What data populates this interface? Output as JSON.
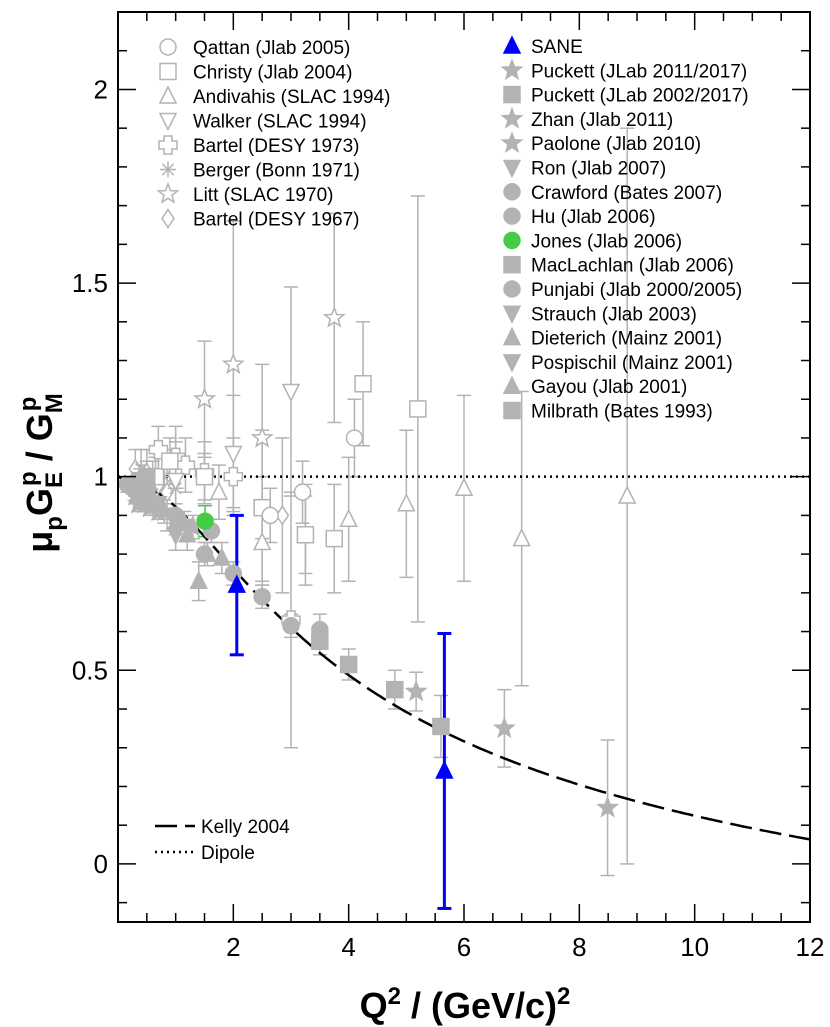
{
  "chart_data": {
    "type": "scatter",
    "title": "",
    "xlabel": {
      "main": "Q",
      "sup": "2",
      "mid": " / (GeV/c)",
      "sup2": "2"
    },
    "ylabel": {
      "mu": "μ",
      "mu_sub": "p",
      "G1": "G",
      "G1_sub": "E",
      "G1_sup": "p",
      "slash": " / ",
      "G2": "G",
      "G2_sub": "M",
      "G2_sup": "p"
    },
    "xlim": [
      0,
      12
    ],
    "ylim": [
      -0.15,
      2.2
    ],
    "x_ticks": [
      {
        "value": 2,
        "label": "2"
      },
      {
        "value": 4,
        "label": "4"
      },
      {
        "value": 6,
        "label": "6"
      },
      {
        "value": 8,
        "label": "8"
      },
      {
        "value": 10,
        "label": "10"
      },
      {
        "value": 12,
        "label": "12"
      }
    ],
    "y_ticks": [
      {
        "value": 0,
        "label": "0"
      },
      {
        "value": 0.5,
        "label": "0.5"
      },
      {
        "value": 1,
        "label": "1"
      },
      {
        "value": 1.5,
        "label": "1.5"
      },
      {
        "value": 2,
        "label": "2"
      }
    ],
    "colors": {
      "gray": "#b3b3b3",
      "blue": "#0000ff",
      "green": "#44cc44",
      "black": "#000000"
    },
    "curves": [
      {
        "name": "Kelly 2004",
        "style": "long-dash",
        "formula": "kelly"
      },
      {
        "name": "Dipole",
        "style": "dotted",
        "formula": "constant",
        "value": 1.0
      }
    ],
    "legend_left": [
      {
        "label": "Qattan (Jlab 2005)",
        "marker": "circle-open"
      },
      {
        "label": "Christy (Jlab 2004)",
        "marker": "square-open"
      },
      {
        "label": "Andivahis (SLAC 1994)",
        "marker": "triangle-up-open"
      },
      {
        "label": "Walker (SLAC 1994)",
        "marker": "triangle-down-open"
      },
      {
        "label": "Bartel (DESY 1973)",
        "marker": "cross-open"
      },
      {
        "label": "Berger (Bonn 1971)",
        "marker": "asterisk"
      },
      {
        "label": "Litt (SLAC 1970)",
        "marker": "star-open"
      },
      {
        "label": "Bartel (DESY 1967)",
        "marker": "diamond-open"
      }
    ],
    "legend_right": [
      {
        "label": "SANE",
        "marker": "triangle-up-filled",
        "color": "blue"
      },
      {
        "label": "Puckett (JLab 2011/2017)",
        "marker": "star-filled",
        "color": "gray"
      },
      {
        "label": "Puckett (JLab 2002/2017)",
        "marker": "square-filled",
        "color": "gray"
      },
      {
        "label": "Zhan (Jlab 2011)",
        "marker": "star-filled",
        "color": "gray"
      },
      {
        "label": "Paolone (Jlab 2010)",
        "marker": "star-filled",
        "color": "gray"
      },
      {
        "label": "Ron (Jlab 2007)",
        "marker": "triangle-down-filled",
        "color": "gray"
      },
      {
        "label": "Crawford (Bates 2007)",
        "marker": "circle-filled",
        "color": "gray"
      },
      {
        "label": "Hu (Jlab 2006)",
        "marker": "circle-filled",
        "color": "gray"
      },
      {
        "label": "Jones (Jlab 2006)",
        "marker": "circle-filled",
        "color": "green"
      },
      {
        "label": "MacLachlan (Jlab 2006)",
        "marker": "square-filled",
        "color": "gray"
      },
      {
        "label": "Punjabi (Jlab 2000/2005)",
        "marker": "circle-filled",
        "color": "gray"
      },
      {
        "label": "Strauch (Jlab 2003)",
        "marker": "triangle-down-filled",
        "color": "gray"
      },
      {
        "label": "Dieterich (Mainz 2001)",
        "marker": "triangle-up-filled",
        "color": "gray"
      },
      {
        "label": "Pospischil (Mainz 2001)",
        "marker": "triangle-down-filled",
        "color": "gray"
      },
      {
        "label": "Gayou (Jlab 2001)",
        "marker": "triangle-up-filled",
        "color": "gray"
      },
      {
        "label": "Milbrath (Bates 1993)",
        "marker": "square-filled",
        "color": "gray"
      }
    ],
    "legend_curves": [
      {
        "label": "Kelly 2004",
        "style": "long-dash"
      },
      {
        "label": "Dipole",
        "style": "dotted"
      }
    ],
    "series": [
      {
        "name": "SANE",
        "marker": "triangle-up-filled",
        "color": "blue",
        "errbar_width": 3,
        "points": [
          {
            "x": 2.06,
            "y": 0.72,
            "err": 0.18
          },
          {
            "x": 5.66,
            "y": 0.24,
            "err": 0.355
          }
        ]
      },
      {
        "name": "Jones (Jlab 2006)",
        "marker": "circle-filled",
        "color": "green",
        "points": [
          {
            "x": 1.51,
            "y": 0.885,
            "err": 0.04
          }
        ]
      },
      {
        "name": "Puckett (JLab 2011/2017)",
        "marker": "star-filled",
        "color": "gray",
        "points": [
          {
            "x": 5.17,
            "y": 0.445,
            "err": 0.05
          },
          {
            "x": 6.7,
            "y": 0.35,
            "err": 0.1
          },
          {
            "x": 8.49,
            "y": 0.145,
            "err": 0.175
          }
        ]
      },
      {
        "name": "Puckett (JLab 2002/2017)",
        "marker": "square-filled",
        "color": "gray",
        "points": [
          {
            "x": 3.5,
            "y": 0.575,
            "err": 0.035
          },
          {
            "x": 4.0,
            "y": 0.515,
            "err": 0.04
          },
          {
            "x": 4.8,
            "y": 0.45,
            "err": 0.05
          },
          {
            "x": 5.6,
            "y": 0.355,
            "err": 0.08
          }
        ]
      },
      {
        "name": "Punjabi (Jlab 2000/2005)",
        "marker": "circle-filled",
        "color": "gray",
        "points": [
          {
            "x": 1.5,
            "y": 0.8,
            "err": 0.03
          },
          {
            "x": 2.0,
            "y": 0.75,
            "err": 0.03
          },
          {
            "x": 2.5,
            "y": 0.69,
            "err": 0.03
          },
          {
            "x": 3.0,
            "y": 0.615,
            "err": 0.03
          },
          {
            "x": 3.5,
            "y": 0.605,
            "err": 0.04
          }
        ]
      },
      {
        "name": "Paolone (Jlab 2010)",
        "marker": "star-filled",
        "color": "gray",
        "points": [
          {
            "x": 0.8,
            "y": 0.91,
            "err": 0.03
          },
          {
            "x": 1.15,
            "y": 0.88,
            "err": 0.03
          },
          {
            "x": 1.3,
            "y": 0.87,
            "err": 0.03
          }
        ]
      },
      {
        "name": "Hu (Jlab 2006)",
        "marker": "circle-filled",
        "color": "gray",
        "points": [
          {
            "x": 0.5,
            "y": 0.95,
            "err": 0.03
          },
          {
            "x": 1.0,
            "y": 0.9,
            "err": 0.03
          },
          {
            "x": 1.62,
            "y": 0.86,
            "err": 0.03
          }
        ]
      },
      {
        "name": "Crawford (Bates 2007)",
        "marker": "circle-filled",
        "color": "gray",
        "points": [
          {
            "x": 0.16,
            "y": 0.98,
            "err": 0.02
          },
          {
            "x": 0.3,
            "y": 0.97,
            "err": 0.02
          },
          {
            "x": 0.45,
            "y": 0.95,
            "err": 0.02
          }
        ]
      },
      {
        "name": "Dieterich (Mainz 2001)",
        "marker": "triangle-up-filled",
        "color": "gray",
        "points": [
          {
            "x": 1.4,
            "y": 0.73,
            "err": 0.05
          }
        ]
      },
      {
        "name": "Gayou (Jlab 2001)",
        "marker": "triangle-up-filled",
        "color": "gray",
        "points": [
          {
            "x": 0.5,
            "y": 0.94,
            "err": 0.03
          },
          {
            "x": 0.75,
            "y": 0.92,
            "err": 0.03
          },
          {
            "x": 1.0,
            "y": 0.88,
            "err": 0.03
          },
          {
            "x": 1.2,
            "y": 0.85,
            "err": 0.04
          },
          {
            "x": 1.55,
            "y": 0.8,
            "err": 0.03
          },
          {
            "x": 1.8,
            "y": 0.79,
            "err": 0.04
          }
        ]
      },
      {
        "name": "Strauch (Jlab 2003)",
        "marker": "triangle-down-filled",
        "color": "gray",
        "points": [
          {
            "x": 1.0,
            "y": 0.85,
            "err": 0.04
          }
        ]
      },
      {
        "name": "Ron (Jlab 2007)",
        "marker": "triangle-down-filled",
        "color": "gray",
        "points": [
          {
            "x": 0.3,
            "y": 0.97,
            "err": 0.02
          },
          {
            "x": 0.5,
            "y": 0.95,
            "err": 0.02
          },
          {
            "x": 0.6,
            "y": 0.93,
            "err": 0.02
          },
          {
            "x": 0.7,
            "y": 0.93,
            "err": 0.02
          }
        ]
      },
      {
        "name": "Zhan (Jlab 2011)",
        "marker": "star-filled",
        "color": "gray",
        "points": [
          {
            "x": 0.3,
            "y": 0.95,
            "err": 0.02
          },
          {
            "x": 0.35,
            "y": 0.93,
            "err": 0.02
          },
          {
            "x": 0.45,
            "y": 0.93,
            "err": 0.02
          },
          {
            "x": 0.55,
            "y": 0.92,
            "err": 0.02
          },
          {
            "x": 0.7,
            "y": 0.91,
            "err": 0.02
          }
        ]
      },
      {
        "name": "MacLachlan (Jlab 2006)",
        "marker": "square-filled",
        "color": "gray",
        "points": [
          {
            "x": 0.5,
            "y": 0.96,
            "err": 0.03
          }
        ]
      },
      {
        "name": "Milbrath (Bates 1993)",
        "marker": "square-filled",
        "color": "gray",
        "points": [
          {
            "x": 0.38,
            "y": 0.99,
            "err": 0.04
          },
          {
            "x": 0.5,
            "y": 1.0,
            "err": 0.04
          }
        ]
      },
      {
        "name": "Pospischil (Mainz 2001)",
        "marker": "triangle-down-filled",
        "color": "gray",
        "points": [
          {
            "x": 0.4,
            "y": 0.97,
            "err": 0.03
          }
        ]
      },
      {
        "name": "Qattan (Jlab 2005)",
        "marker": "circle-open",
        "color": "gray",
        "points": [
          {
            "x": 2.64,
            "y": 0.9,
            "err": 0.07
          },
          {
            "x": 3.2,
            "y": 0.96,
            "err": 0.08
          },
          {
            "x": 4.1,
            "y": 1.1,
            "err": 0.1
          }
        ]
      },
      {
        "name": "Christy (Jlab 2004)",
        "marker": "square-open",
        "color": "gray",
        "points": [
          {
            "x": 0.65,
            "y": 1.0,
            "err": 0.05
          },
          {
            "x": 0.9,
            "y": 1.04,
            "err": 0.06
          },
          {
            "x": 1.5,
            "y": 1.0,
            "err": 0.06
          },
          {
            "x": 2.5,
            "y": 0.92,
            "err": 0.08
          },
          {
            "x": 3.25,
            "y": 0.85,
            "err": 0.1
          },
          {
            "x": 3.75,
            "y": 0.84,
            "err": 0.14
          },
          {
            "x": 4.25,
            "y": 1.24,
            "err": 0.16
          },
          {
            "x": 5.2,
            "y": 1.175,
            "err": 0.55
          }
        ]
      },
      {
        "name": "Andivahis (SLAC 1994)",
        "marker": "triangle-up-open",
        "color": "gray",
        "points": [
          {
            "x": 1.75,
            "y": 0.96,
            "err": 0.07
          },
          {
            "x": 2.5,
            "y": 0.83,
            "err": 0.1
          },
          {
            "x": 3.25,
            "y": 0.85,
            "err": 0.13
          },
          {
            "x": 4.0,
            "y": 0.89,
            "err": 0.16
          },
          {
            "x": 5.0,
            "y": 0.93,
            "err": 0.19
          },
          {
            "x": 6.0,
            "y": 0.97,
            "err": 0.24
          },
          {
            "x": 7.0,
            "y": 0.84,
            "err": 0.38
          },
          {
            "x": 8.83,
            "y": 0.95,
            "err": 0.95
          }
        ]
      },
      {
        "name": "Walker (SLAC 1994)",
        "marker": "triangle-down-open",
        "color": "gray",
        "points": [
          {
            "x": 1.0,
            "y": 0.99,
            "err": 0.1
          },
          {
            "x": 2.0,
            "y": 1.06,
            "err": 0.15
          },
          {
            "x": 2.5,
            "y": 0.92,
            "err": 0.2
          },
          {
            "x": 3.0,
            "y": 1.22,
            "err": 0.27
          }
        ]
      },
      {
        "name": "Bartel (DESY 1973)",
        "marker": "cross-open",
        "color": "gray",
        "points": [
          {
            "x": 0.7,
            "y": 1.07,
            "err": 0.06
          },
          {
            "x": 1.0,
            "y": 1.05,
            "err": 0.08
          },
          {
            "x": 1.17,
            "y": 1.03,
            "err": 0.07
          },
          {
            "x": 1.5,
            "y": 1.01,
            "err": 0.08
          },
          {
            "x": 2.0,
            "y": 1.0,
            "err": 0.1
          },
          {
            "x": 3.0,
            "y": 0.63,
            "err": 0.33
          }
        ]
      },
      {
        "name": "Berger (Bonn 1971)",
        "marker": "asterisk",
        "color": "gray",
        "points": [
          {
            "x": 0.4,
            "y": 1.02,
            "err": 0.05
          },
          {
            "x": 0.6,
            "y": 0.98,
            "err": 0.06
          },
          {
            "x": 0.8,
            "y": 1.0,
            "err": 0.07
          },
          {
            "x": 1.0,
            "y": 0.97,
            "err": 0.08
          }
        ]
      },
      {
        "name": "Litt (SLAC 1970)",
        "marker": "star-open",
        "color": "gray",
        "points": [
          {
            "x": 1.5,
            "y": 1.2,
            "err": 0.15
          },
          {
            "x": 2.0,
            "y": 1.29,
            "err": 0.37
          },
          {
            "x": 2.5,
            "y": 1.1,
            "err": 0.19
          },
          {
            "x": 3.75,
            "y": 1.41,
            "err": 0.27
          }
        ]
      },
      {
        "name": "Bartel (DESY 1967)",
        "marker": "diamond-open",
        "color": "gray",
        "points": [
          {
            "x": 0.3,
            "y": 1.02,
            "err": 0.05
          },
          {
            "x": 0.5,
            "y": 1.01,
            "err": 0.06
          },
          {
            "x": 0.7,
            "y": 0.98,
            "err": 0.08
          },
          {
            "x": 0.85,
            "y": 0.96,
            "err": 0.1
          },
          {
            "x": 2.85,
            "y": 0.9,
            "err": 0.2
          }
        ]
      }
    ]
  }
}
